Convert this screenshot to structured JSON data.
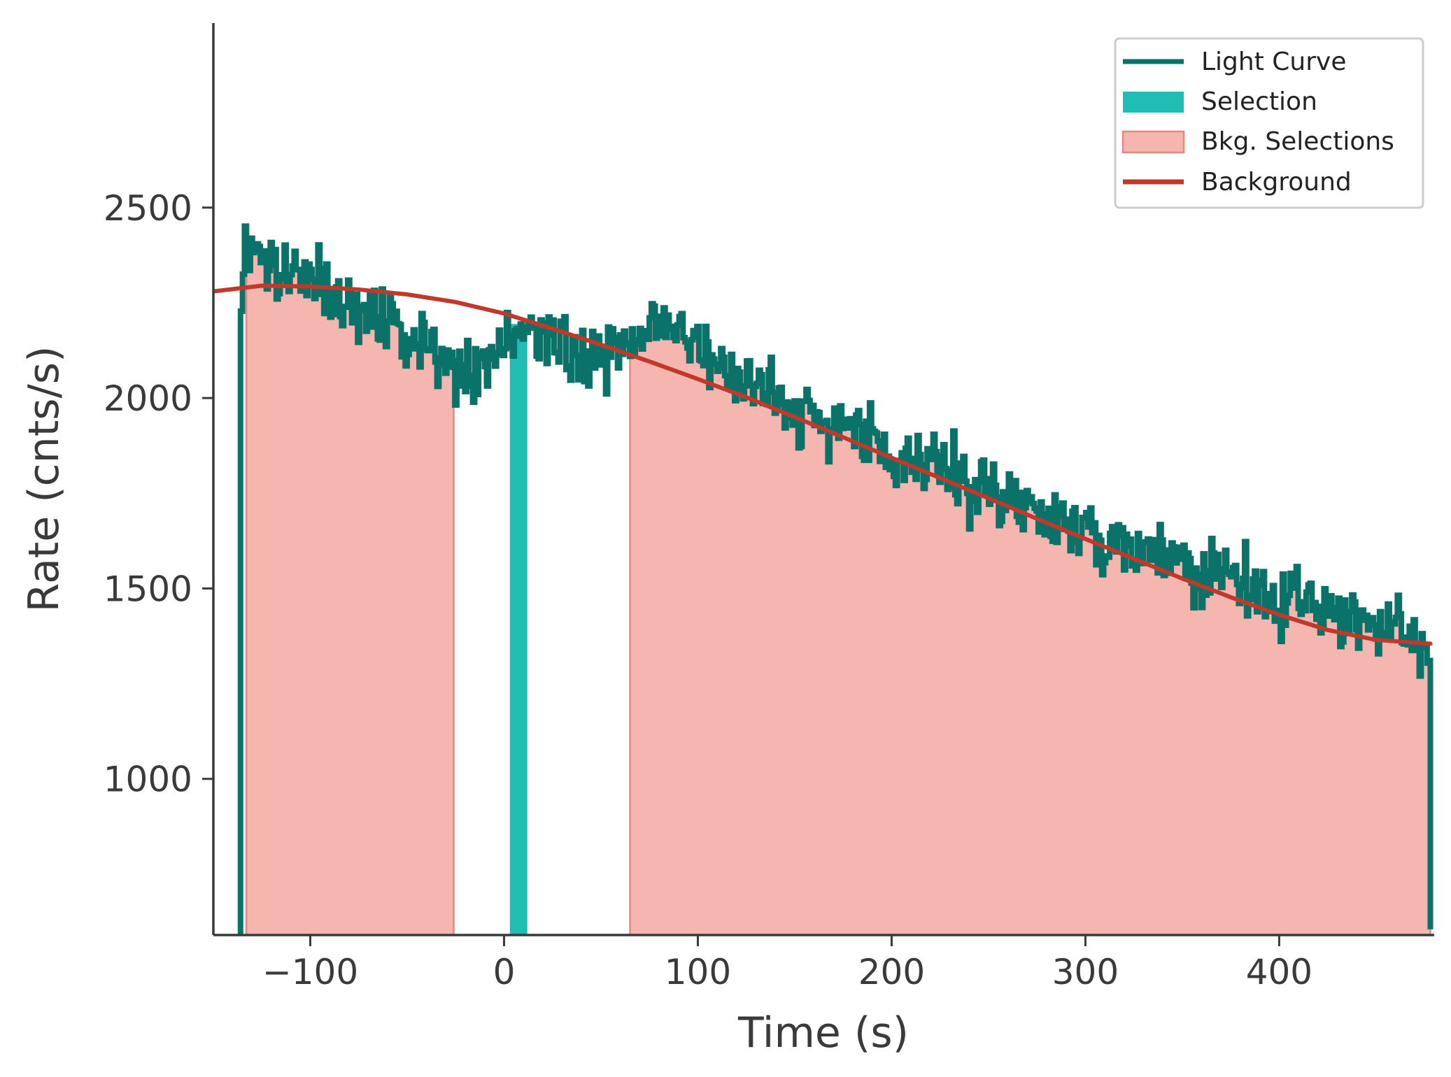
{
  "chart_data": {
    "type": "line",
    "xlabel": "Time (s)",
    "ylabel": "Rate (cnts/s)",
    "xlim": [
      -150,
      480
    ],
    "ylim": [
      590,
      2990
    ],
    "x_ticks": [
      -100,
      0,
      100,
      200,
      300,
      400
    ],
    "x_tick_labels": [
      "−100",
      "0",
      "100",
      "200",
      "300",
      "400"
    ],
    "y_ticks": [
      1000,
      1500,
      2000,
      2500
    ],
    "y_tick_labels": [
      "1000",
      "1500",
      "2000",
      "2500"
    ],
    "grid": false,
    "legend_position": "top-right",
    "legend": {
      "light_curve": "Light Curve",
      "selection": "Selection",
      "bkg_selections": "Bkg. Selections",
      "background": "Background"
    },
    "colors": {
      "light_curve": "#0a7269",
      "selection": "#20bdb4",
      "bkg_fill": "#f5b6b0",
      "bkg_edge": "#e8877c",
      "background": "#c0392b",
      "axis": "#3a3a3a"
    },
    "selection_interval": [
      3,
      12
    ],
    "bkg_intervals": [
      [
        -133,
        -26
      ],
      [
        65,
        478
      ]
    ],
    "background_model": {
      "x": [
        -150,
        -125,
        -100,
        -75,
        -50,
        -25,
        0,
        25,
        50,
        75,
        100,
        125,
        150,
        175,
        200,
        225,
        250,
        275,
        300,
        325,
        350,
        375,
        400,
        425,
        450,
        478
      ],
      "y": [
        2280,
        2295,
        2293,
        2285,
        2272,
        2252,
        2222,
        2182,
        2140,
        2096,
        2050,
        2002,
        1950,
        1897,
        1843,
        1790,
        1737,
        1683,
        1630,
        1578,
        1526,
        1477,
        1431,
        1391,
        1365,
        1355
      ]
    },
    "light_curve": {
      "bin_width": 1.024,
      "x_start": -136,
      "x_end": 478,
      "profile_x": [
        -136,
        -134,
        -130,
        -120,
        -110,
        -100,
        -90,
        -80,
        -70,
        -60,
        -50,
        -40,
        -30,
        -20,
        -10,
        0,
        10,
        20,
        30,
        40,
        50,
        60,
        70,
        80,
        90,
        100,
        110,
        120,
        130,
        150,
        170,
        200,
        220,
        250,
        270,
        300,
        330,
        360,
        390,
        420,
        440,
        460,
        478
      ],
      "profile_y": [
        2240,
        2440,
        2410,
        2370,
        2330,
        2300,
        2270,
        2240,
        2210,
        2190,
        2170,
        2150,
        2120,
        2080,
        2080,
        2130,
        2180,
        2160,
        2130,
        2090,
        2110,
        2130,
        2160,
        2190,
        2200,
        2160,
        2100,
        2070,
        2030,
        1980,
        1930,
        1870,
        1820,
        1750,
        1710,
        1650,
        1590,
        1540,
        1490,
        1460,
        1420,
        1380,
        1330
      ],
      "noise_amplitude": 45
    }
  }
}
